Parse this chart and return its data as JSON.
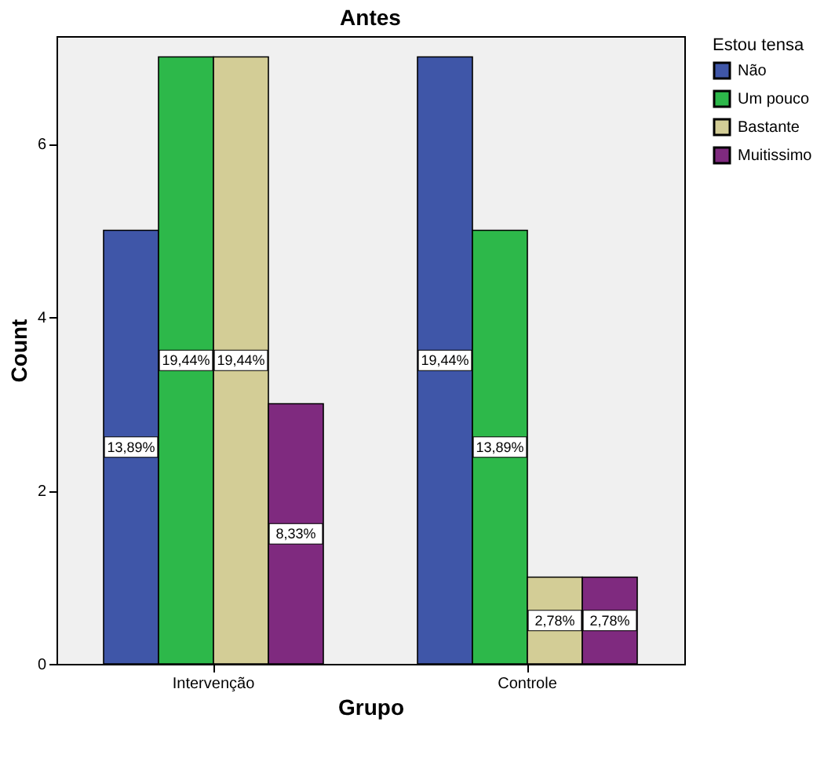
{
  "chart_data": {
    "type": "bar",
    "title": "Antes",
    "xlabel": "Grupo",
    "ylabel": "Count",
    "legend_title": "Estou tensa",
    "categories": [
      "Intervenção",
      "Controle"
    ],
    "series": [
      {
        "name": "Não",
        "color": "#3f56a8",
        "values": [
          5,
          7
        ]
      },
      {
        "name": "Um pouco",
        "color": "#2db84a",
        "values": [
          7,
          5
        ]
      },
      {
        "name": "Bastante",
        "color": "#d3cd96",
        "values": [
          7,
          1
        ]
      },
      {
        "name": "Muitissimo",
        "color": "#7f2a7f",
        "values": [
          3,
          1
        ]
      }
    ],
    "annotations": [
      "13,89%",
      "19,44%",
      "19,44%",
      "8,33%",
      "19,44%",
      "13,89%",
      "2,78%",
      "2,78%"
    ],
    "ylim": [
      0,
      7.24
    ],
    "yticks": [
      0,
      2,
      4,
      6
    ],
    "grid": false,
    "legend": "top right"
  }
}
